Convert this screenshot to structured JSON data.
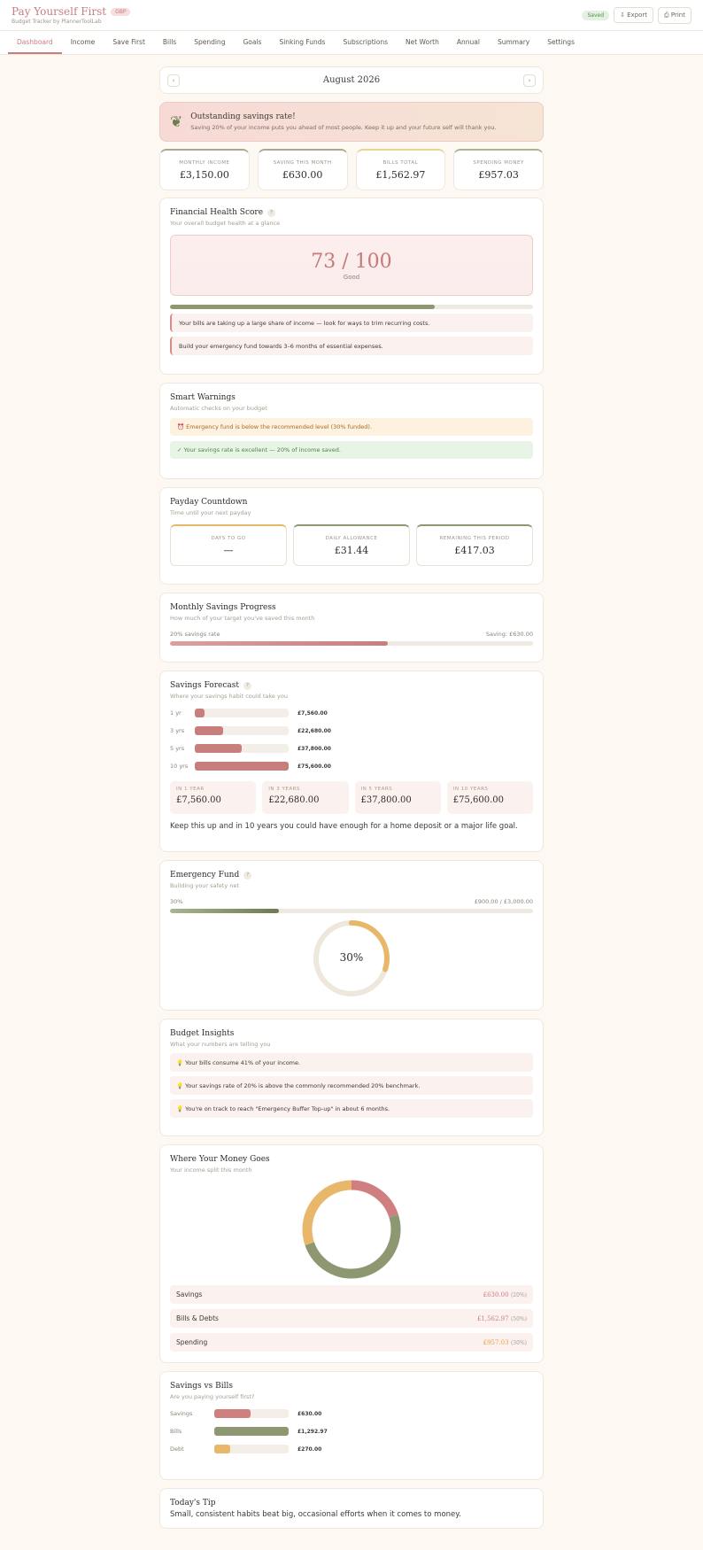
{
  "header": {
    "title": "Pay Yourself First",
    "currency_badge": "GBP",
    "subtitle": "Budget Tracker by PlannerToolLab",
    "saved_label": "Saved",
    "export_label": "Export",
    "print_label": "Print"
  },
  "nav": {
    "tabs": [
      "Dashboard",
      "Income",
      "Save First",
      "Bills",
      "Spending",
      "Goals",
      "Sinking Funds",
      "Subscriptions",
      "Net Worth",
      "Annual",
      "Summary",
      "Settings"
    ],
    "active": "Dashboard"
  },
  "month": {
    "label": "August 2026",
    "prev": "‹",
    "next": "›"
  },
  "banner": {
    "icon": "leaf-icon",
    "title": "Outstanding savings rate!",
    "text": "Saving 20% of your income puts you ahead of most people. Keep it up and your future self will thank you."
  },
  "stats": [
    {
      "label": "MONTHLY INCOME",
      "value": "£3,150.00",
      "accent": "#a8a98e"
    },
    {
      "label": "SAVING THIS MONTH",
      "value": "£630.00",
      "accent": "#a8a98e"
    },
    {
      "label": "BILLS TOTAL",
      "value": "£1,562.97",
      "accent": "#e8d58f"
    },
    {
      "label": "SPENDING MONEY",
      "value": "£957.03",
      "accent": "#a8b590"
    }
  ],
  "health": {
    "title": "Financial Health Score",
    "help": "?",
    "subtitle": "Your overall budget health at a glance",
    "score": "73 / 100",
    "score_label": "Good",
    "progress": 0.73,
    "notes": [
      "Your bills are taking up a large share of income — look for ways to trim recurring costs.",
      "Build your emergency fund towards 3–6 months of essential expenses."
    ]
  },
  "warnings": {
    "title": "Smart Warnings",
    "subtitle": "Automatic checks on your budget",
    "items": [
      "⏰ Emergency fund is below the recommended level (30% funded).",
      "✓ Your savings rate is excellent — 20% of income saved."
    ]
  },
  "payday": {
    "title": "Payday Countdown",
    "subtitle": "Time until your next payday",
    "cards": [
      {
        "label": "DAYS TO GO",
        "value": "—",
        "accent": "#e8b76a"
      },
      {
        "label": "DAILY ALLOWANCE",
        "value": "£31.44",
        "accent": "#8d9872"
      },
      {
        "label": "REMAINING THIS PERIOD",
        "value": "£417.03",
        "accent": "#8d9872"
      }
    ]
  },
  "savings_progress": {
    "title": "Monthly Savings Progress",
    "subtitle": "How much of your target you've saved this month",
    "rate_label": "20% savings rate",
    "saving_label": "Saving: £630.00",
    "progress": 0.6
  },
  "forecast": {
    "title": "Savings Forecast",
    "help": "?",
    "subtitle": "Where your savings habit could take you",
    "rows": [
      {
        "label": "1 yr",
        "value": 7560,
        "display": "£7,560.00"
      },
      {
        "label": "3 yrs",
        "value": 22680,
        "display": "£22,680.00"
      },
      {
        "label": "5 yrs",
        "value": 37800,
        "display": "£37,800.00"
      },
      {
        "label": "10 yrs",
        "value": 75600,
        "display": "£75,600.00"
      }
    ],
    "cards": [
      {
        "label": "IN 1 YEAR",
        "value": "£7,560.00"
      },
      {
        "label": "IN 3 YEARS",
        "value": "£22,680.00"
      },
      {
        "label": "IN 5 YEARS",
        "value": "£37,800.00"
      },
      {
        "label": "IN 10 YEARS",
        "value": "£75,600.00"
      }
    ],
    "message": "Keep this up and in 10 years you could have enough for a home deposit or a major life goal."
  },
  "emergency": {
    "title": "Emergency Fund",
    "help": "?",
    "subtitle": "Building your safety net",
    "pct_label": "30%",
    "amount_label": "£900.00 / £3,000.00",
    "progress": 0.3,
    "ring_label": "30%"
  },
  "insights": {
    "title": "Budget Insights",
    "subtitle": "What your numbers are telling you",
    "items": [
      "💡 Your bills consume 41% of your income.",
      "💡 Your savings rate of 20% is above the commonly recommended 20% benchmark.",
      "💡 You're on track to reach \"Emergency Buffer Top-up\" in about 6 months."
    ]
  },
  "money_goes": {
    "title": "Where Your Money Goes",
    "subtitle": "Your income split this month",
    "segments": [
      {
        "name": "Savings",
        "amount": "£630.00",
        "pct": "(20%)",
        "value": 630,
        "color": "#cf7f80"
      },
      {
        "name": "Bills & Debts",
        "amount": "£1,562.97",
        "pct": "(50%)",
        "value": 1562.97,
        "color": "#8d9872"
      },
      {
        "name": "Spending",
        "amount": "£957.03",
        "pct": "(30%)",
        "value": 957.03,
        "color": "#e8b76a"
      }
    ]
  },
  "savings_vs_bills": {
    "title": "Savings vs Bills",
    "subtitle": "Are you paying yourself first?",
    "rows": [
      {
        "label": "Savings",
        "value": 630,
        "display": "£630.00",
        "color": "#cf7f80"
      },
      {
        "label": "Bills",
        "value": 1292.97,
        "display": "£1,292.97",
        "color": "#8d9872"
      },
      {
        "label": "Debt",
        "value": 270,
        "display": "£270.00",
        "color": "#e8b76a"
      }
    ]
  },
  "tip": {
    "title": "Today's Tip",
    "text": "Small, consistent habits beat big, occasional efforts when it comes to money."
  }
}
